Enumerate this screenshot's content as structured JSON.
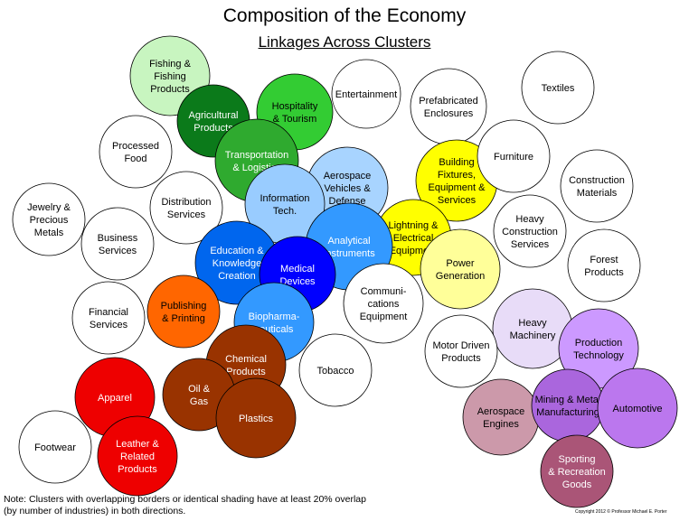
{
  "title": "Composition of the Economy",
  "subtitle": "Linkages Across Clusters",
  "note_line1": "Note: Clusters with overlapping borders or identical shading  have at least 20% overlap",
  "note_line2": "(by number of industries) in both directions.",
  "copyright": "Copyright 2012 © Professor Michael E. Porter",
  "clusters": [
    {
      "id": "fishing",
      "lines": [
        "Fishing &",
        "Fishing",
        "Products"
      ],
      "fill": "#c8f5c0",
      "text": "#000000"
    },
    {
      "id": "processed-food",
      "lines": [
        "Processed",
        "Food"
      ],
      "fill": "#ffffff",
      "text": "#000000"
    },
    {
      "id": "agricultural",
      "lines": [
        "Agricultural",
        "Products"
      ],
      "fill": "#0b7a1a",
      "text": "#ffffff"
    },
    {
      "id": "hospitality",
      "lines": [
        "Hospitality",
        "& Tourism"
      ],
      "fill": "#33cc33",
      "text": "#000000"
    },
    {
      "id": "entertainment",
      "lines": [
        "Entertainment"
      ],
      "fill": "#ffffff",
      "text": "#000000"
    },
    {
      "id": "textiles",
      "lines": [
        "Textiles"
      ],
      "fill": "#ffffff",
      "text": "#000000"
    },
    {
      "id": "prefabricated",
      "lines": [
        "Prefabricated",
        "Enclosures"
      ],
      "fill": "#ffffff",
      "text": "#000000"
    },
    {
      "id": "transportation",
      "lines": [
        "Transportation",
        "& Logistics"
      ],
      "fill": "#2faa2f",
      "text": "#ffffff"
    },
    {
      "id": "distribution",
      "lines": [
        "Distribution",
        "Services"
      ],
      "fill": "#ffffff",
      "text": "#000000"
    },
    {
      "id": "jewelry",
      "lines": [
        "Jewelry &",
        "Precious",
        "Metals"
      ],
      "fill": "#ffffff",
      "text": "#000000"
    },
    {
      "id": "business",
      "lines": [
        "Business",
        "Services"
      ],
      "fill": "#ffffff",
      "text": "#000000"
    },
    {
      "id": "aerospace-vehicles",
      "lines": [
        "Aerospace",
        "Vehicles &",
        "Defense"
      ],
      "fill": "#a8d4ff",
      "text": "#000000"
    },
    {
      "id": "information",
      "lines": [
        "Information",
        "Tech."
      ],
      "fill": "#99ccff",
      "text": "#000000"
    },
    {
      "id": "building",
      "lines": [
        "Building",
        "Fixtures,",
        "Equipment &",
        "Services"
      ],
      "fill": "#ffff00",
      "text": "#000000"
    },
    {
      "id": "furniture",
      "lines": [
        "Furniture"
      ],
      "fill": "#ffffff",
      "text": "#000000"
    },
    {
      "id": "construction",
      "lines": [
        "Construction",
        "Materials"
      ],
      "fill": "#ffffff",
      "text": "#000000"
    },
    {
      "id": "heavy-construction",
      "lines": [
        "Heavy",
        "Construction",
        "Services"
      ],
      "fill": "#ffffff",
      "text": "#000000"
    },
    {
      "id": "lightning",
      "lines": [
        "Lightning &",
        "Electrical",
        "Equipment"
      ],
      "fill": "#ffff00",
      "text": "#000000"
    },
    {
      "id": "analytical",
      "lines": [
        "Analytical",
        "Instruments"
      ],
      "fill": "#3399ff",
      "text": "#ffffff"
    },
    {
      "id": "education",
      "lines": [
        "Education &",
        "Knowledge",
        "Creation"
      ],
      "fill": "#0066ee",
      "text": "#ffffff"
    },
    {
      "id": "medical",
      "lines": [
        "Medical",
        "Devices"
      ],
      "fill": "#0000ff",
      "text": "#ffffff"
    },
    {
      "id": "power",
      "lines": [
        "Power",
        "Generation"
      ],
      "fill": "#ffff99",
      "text": "#000000"
    },
    {
      "id": "forest",
      "lines": [
        "Forest",
        "Products"
      ],
      "fill": "#ffffff",
      "text": "#000000"
    },
    {
      "id": "financial",
      "lines": [
        "Financial",
        "Services"
      ],
      "fill": "#ffffff",
      "text": "#000000"
    },
    {
      "id": "publishing",
      "lines": [
        "Publishing",
        "& Printing"
      ],
      "fill": "#ff6600",
      "text": "#000000"
    },
    {
      "id": "communications",
      "lines": [
        "Communi-",
        "cations",
        "Equipment"
      ],
      "fill": "#ffffff",
      "text": "#000000"
    },
    {
      "id": "biopharma",
      "lines": [
        "Biopharma-",
        "ceuticals"
      ],
      "fill": "#3399ff",
      "text": "#ffffff"
    },
    {
      "id": "heavy-machinery",
      "lines": [
        "Heavy",
        "Machinery"
      ],
      "fill": "#e8dcf8",
      "text": "#000000"
    },
    {
      "id": "motor-driven",
      "lines": [
        "Motor Driven",
        "Products"
      ],
      "fill": "#ffffff",
      "text": "#000000"
    },
    {
      "id": "production-tech",
      "lines": [
        "Production",
        "Technology"
      ],
      "fill": "#cc99ff",
      "text": "#000000"
    },
    {
      "id": "chemical",
      "lines": [
        "Chemical",
        "Products"
      ],
      "fill": "#993300",
      "text": "#ffffff"
    },
    {
      "id": "tobacco",
      "lines": [
        "Tobacco"
      ],
      "fill": "#ffffff",
      "text": "#000000"
    },
    {
      "id": "oil-gas",
      "lines": [
        "Oil &",
        "Gas"
      ],
      "fill": "#993300",
      "text": "#ffffff"
    },
    {
      "id": "apparel",
      "lines": [
        "Apparel"
      ],
      "fill": "#ee0000",
      "text": "#ffffff"
    },
    {
      "id": "plastics",
      "lines": [
        "Plastics"
      ],
      "fill": "#993300",
      "text": "#ffffff"
    },
    {
      "id": "aerospace-engines",
      "lines": [
        "Aerospace",
        "Engines"
      ],
      "fill": "#cc99aa",
      "text": "#000000"
    },
    {
      "id": "metal-manufacturing",
      "lines": [
        "Mining & Metal",
        "Manufacturing"
      ],
      "fill": "#aa66dd",
      "text": "#000000"
    },
    {
      "id": "automotive",
      "lines": [
        "Automotive"
      ],
      "fill": "#bb77ee",
      "text": "#000000"
    },
    {
      "id": "footwear",
      "lines": [
        "Footwear"
      ],
      "fill": "#ffffff",
      "text": "#000000"
    },
    {
      "id": "leather",
      "lines": [
        "Leather &",
        "Related",
        "Products"
      ],
      "fill": "#ee0000",
      "text": "#ffffff"
    },
    {
      "id": "sporting",
      "lines": [
        "Sporting",
        "& Recreation",
        "Goods"
      ],
      "fill": "#aa5577",
      "text": "#ffffff"
    }
  ]
}
